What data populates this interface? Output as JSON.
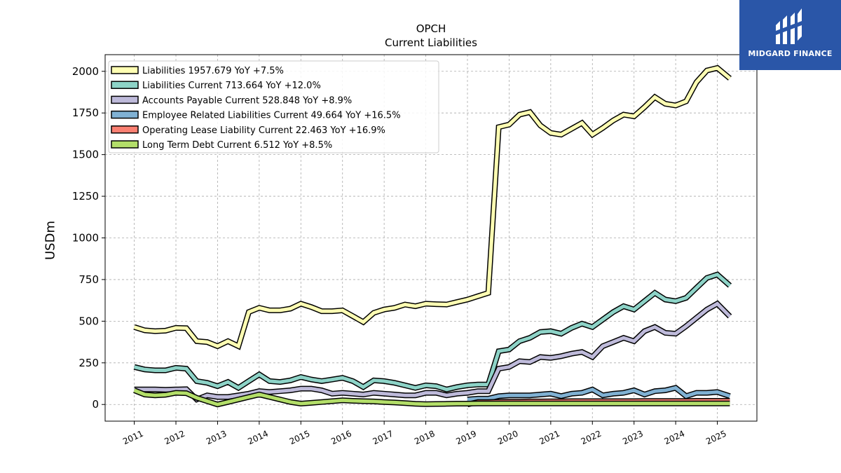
{
  "brand": {
    "name": "MIDGARD FINANCE",
    "color": "#2a56a8"
  },
  "chart_data": {
    "type": "line",
    "title": "OPCH",
    "subtitle": "Current  Liabilities",
    "xlabel": "",
    "ylabel": "USDm",
    "ylim": [
      -100,
      2100
    ],
    "yticks": [
      0,
      250,
      500,
      750,
      1000,
      1250,
      1500,
      1750,
      2000
    ],
    "xlim": [
      2010.3,
      2025.95
    ],
    "xticks": [
      "2011",
      "2012",
      "2013",
      "2014",
      "2015",
      "2016",
      "2017",
      "2018",
      "2019",
      "2020",
      "2021",
      "2022",
      "2023",
      "2024",
      "2025"
    ],
    "grid": true,
    "legend_position": "top-left",
    "series": [
      {
        "name": "Liabilities",
        "legend_text": "Liabilities  1957.679 YoY +7.5%",
        "color": "#ffffb3",
        "x": [
          2011.0,
          2011.25,
          2011.5,
          2011.75,
          2012.0,
          2012.25,
          2012.5,
          2012.75,
          2013.0,
          2013.25,
          2013.5,
          2013.75,
          2014.0,
          2014.25,
          2014.5,
          2014.75,
          2015.0,
          2015.25,
          2015.5,
          2015.75,
          2016.0,
          2016.25,
          2016.5,
          2016.75,
          2017.0,
          2017.25,
          2017.5,
          2017.75,
          2018.0,
          2018.25,
          2018.5,
          2018.75,
          2019.0,
          2019.25,
          2019.5,
          2019.75,
          2020.0,
          2020.25,
          2020.5,
          2020.75,
          2021.0,
          2021.25,
          2021.5,
          2021.75,
          2022.0,
          2022.25,
          2022.5,
          2022.75,
          2023.0,
          2023.25,
          2023.5,
          2023.75,
          2024.0,
          2024.25,
          2024.5,
          2024.75,
          2025.0,
          2025.3
        ],
        "values": [
          465,
          445,
          440,
          443,
          460,
          458,
          380,
          375,
          350,
          380,
          350,
          555,
          580,
          565,
          565,
          575,
          605,
          585,
          560,
          560,
          565,
          530,
          495,
          550,
          570,
          580,
          600,
          590,
          605,
          602,
          600,
          615,
          630,
          650,
          670,
          1665,
          1680,
          1740,
          1755,
          1675,
          1630,
          1620,
          1655,
          1690,
          1620,
          1660,
          1705,
          1740,
          1730,
          1785,
          1845,
          1805,
          1795,
          1820,
          1935,
          2005,
          2020,
          1958
        ]
      },
      {
        "name": "Liabilities Current",
        "legend_text": "Liabilities Current  713.664 YoY +12.0%",
        "color": "#8dd3c7",
        "x": [
          2011.0,
          2011.25,
          2011.5,
          2011.75,
          2012.0,
          2012.25,
          2012.5,
          2012.75,
          2013.0,
          2013.25,
          2013.5,
          2013.75,
          2014.0,
          2014.25,
          2014.5,
          2014.75,
          2015.0,
          2015.25,
          2015.5,
          2015.75,
          2016.0,
          2016.25,
          2016.5,
          2016.75,
          2017.0,
          2017.25,
          2017.5,
          2017.75,
          2018.0,
          2018.25,
          2018.5,
          2018.75,
          2019.0,
          2019.25,
          2019.5,
          2019.75,
          2020.0,
          2020.25,
          2020.5,
          2020.75,
          2021.0,
          2021.25,
          2021.5,
          2021.75,
          2022.0,
          2022.25,
          2022.5,
          2022.75,
          2023.0,
          2023.25,
          2023.5,
          2023.75,
          2024.0,
          2024.25,
          2024.5,
          2024.75,
          2025.0,
          2025.3
        ],
        "values": [
          225,
          210,
          205,
          205,
          220,
          215,
          140,
          130,
          110,
          135,
          100,
          140,
          180,
          140,
          135,
          145,
          165,
          150,
          140,
          150,
          160,
          140,
          105,
          145,
          140,
          130,
          115,
          100,
          115,
          110,
          90,
          105,
          115,
          120,
          120,
          320,
          330,
          380,
          400,
          435,
          440,
          425,
          460,
          485,
          465,
          510,
          555,
          590,
          570,
          620,
          670,
          630,
          620,
          640,
          700,
          760,
          780,
          714
        ]
      },
      {
        "name": "Accounts Payable Current",
        "legend_text": "Accounts Payable Current  528.848 YoY +8.9%",
        "color": "#bebada",
        "x": [
          2011.0,
          2011.25,
          2011.5,
          2011.75,
          2012.0,
          2012.25,
          2012.5,
          2012.75,
          2013.0,
          2013.25,
          2013.5,
          2013.75,
          2014.0,
          2014.25,
          2014.5,
          2014.75,
          2015.0,
          2015.25,
          2015.5,
          2015.75,
          2016.0,
          2016.25,
          2016.5,
          2016.75,
          2017.0,
          2017.25,
          2017.5,
          2017.75,
          2018.0,
          2018.25,
          2018.5,
          2018.75,
          2019.0,
          2019.25,
          2019.5,
          2019.75,
          2020.0,
          2020.25,
          2020.5,
          2020.75,
          2021.0,
          2021.25,
          2021.5,
          2021.75,
          2022.0,
          2022.25,
          2022.5,
          2022.75,
          2023.0,
          2023.25,
          2023.5,
          2023.75,
          2024.0,
          2024.25,
          2024.5,
          2024.75,
          2025.0,
          2025.3
        ],
        "values": [
          90,
          90,
          90,
          88,
          90,
          92,
          30,
          55,
          45,
          45,
          55,
          65,
          80,
          75,
          80,
          85,
          95,
          95,
          85,
          65,
          70,
          65,
          60,
          70,
          65,
          60,
          55,
          55,
          70,
          70,
          55,
          65,
          70,
          80,
          80,
          215,
          225,
          260,
          255,
          285,
          280,
          290,
          305,
          315,
          285,
          350,
          375,
          400,
          380,
          440,
          465,
          430,
          425,
          470,
          520,
          570,
          605,
          529
        ]
      },
      {
        "name": "Employee Related Liabilities Current",
        "legend_text": "Employee Related Liabilities Current  49.664 YoY +16.5%",
        "color": "#80b1d3",
        "x": [
          2019.0,
          2019.25,
          2019.5,
          2019.75,
          2020.0,
          2020.25,
          2020.5,
          2020.75,
          2021.0,
          2021.25,
          2021.5,
          2021.75,
          2022.0,
          2022.25,
          2022.5,
          2022.75,
          2023.0,
          2023.25,
          2023.5,
          2023.75,
          2024.0,
          2024.25,
          2024.5,
          2024.75,
          2025.0,
          2025.3
        ],
        "values": [
          30,
          35,
          35,
          50,
          55,
          55,
          55,
          60,
          65,
          50,
          65,
          70,
          90,
          55,
          65,
          70,
          85,
          60,
          80,
          85,
          100,
          50,
          70,
          70,
          75,
          50
        ]
      },
      {
        "name": "Operating Lease Liability Current",
        "legend_text": "Operating Lease Liability Current  22.463 YoY +16.9%",
        "color": "#fb8072",
        "x": [
          2019.0,
          2019.25,
          2019.5,
          2019.75,
          2020.0,
          2020.25,
          2020.5,
          2020.75,
          2021.0,
          2021.25,
          2021.5,
          2021.75,
          2022.0,
          2022.25,
          2022.5,
          2022.75,
          2023.0,
          2023.25,
          2023.5,
          2023.75,
          2024.0,
          2024.25,
          2024.5,
          2024.75,
          2025.0,
          2025.3
        ],
        "values": [
          0,
          15,
          15,
          16,
          17,
          17,
          18,
          18,
          19,
          19,
          20,
          20,
          20,
          20,
          20,
          20,
          20,
          21,
          21,
          21,
          21,
          21,
          22,
          22,
          22,
          22
        ]
      },
      {
        "name": "Long Term Debt Current",
        "legend_text": "Long Term Debt Current  6.512 YoY +8.5%",
        "color": "#b3de69",
        "x": [
          2011.0,
          2011.25,
          2011.5,
          2011.75,
          2012.0,
          2012.25,
          2012.5,
          2012.75,
          2013.0,
          2013.25,
          2013.5,
          2013.75,
          2014.0,
          2014.25,
          2014.5,
          2014.75,
          2015.0,
          2015.25,
          2015.5,
          2015.75,
          2016.0,
          2016.25,
          2016.5,
          2016.75,
          2017.0,
          2017.25,
          2017.5,
          2017.75,
          2018.0,
          2018.25,
          2018.5,
          2018.75,
          2019.0,
          2019.25,
          2019.5,
          2019.75,
          2020.0,
          2020.25,
          2020.5,
          2020.75,
          2021.0,
          2021.25,
          2021.5,
          2021.75,
          2022.0,
          2022.25,
          2022.5,
          2022.75,
          2023.0,
          2023.25,
          2023.5,
          2023.75,
          2024.0,
          2024.25,
          2024.5,
          2024.75,
          2025.0,
          2025.3
        ],
        "values": [
          85,
          60,
          55,
          58,
          70,
          68,
          40,
          20,
          0,
          15,
          30,
          45,
          60,
          45,
          30,
          15,
          5,
          10,
          15,
          20,
          25,
          22,
          20,
          18,
          15,
          12,
          8,
          4,
          2,
          3,
          4,
          5,
          5,
          6,
          6,
          6,
          6,
          6,
          6,
          6,
          6,
          6,
          6,
          6,
          6,
          6,
          6,
          6,
          6,
          6,
          6,
          6,
          6,
          6,
          6,
          6,
          6,
          6.5
        ]
      }
    ]
  }
}
